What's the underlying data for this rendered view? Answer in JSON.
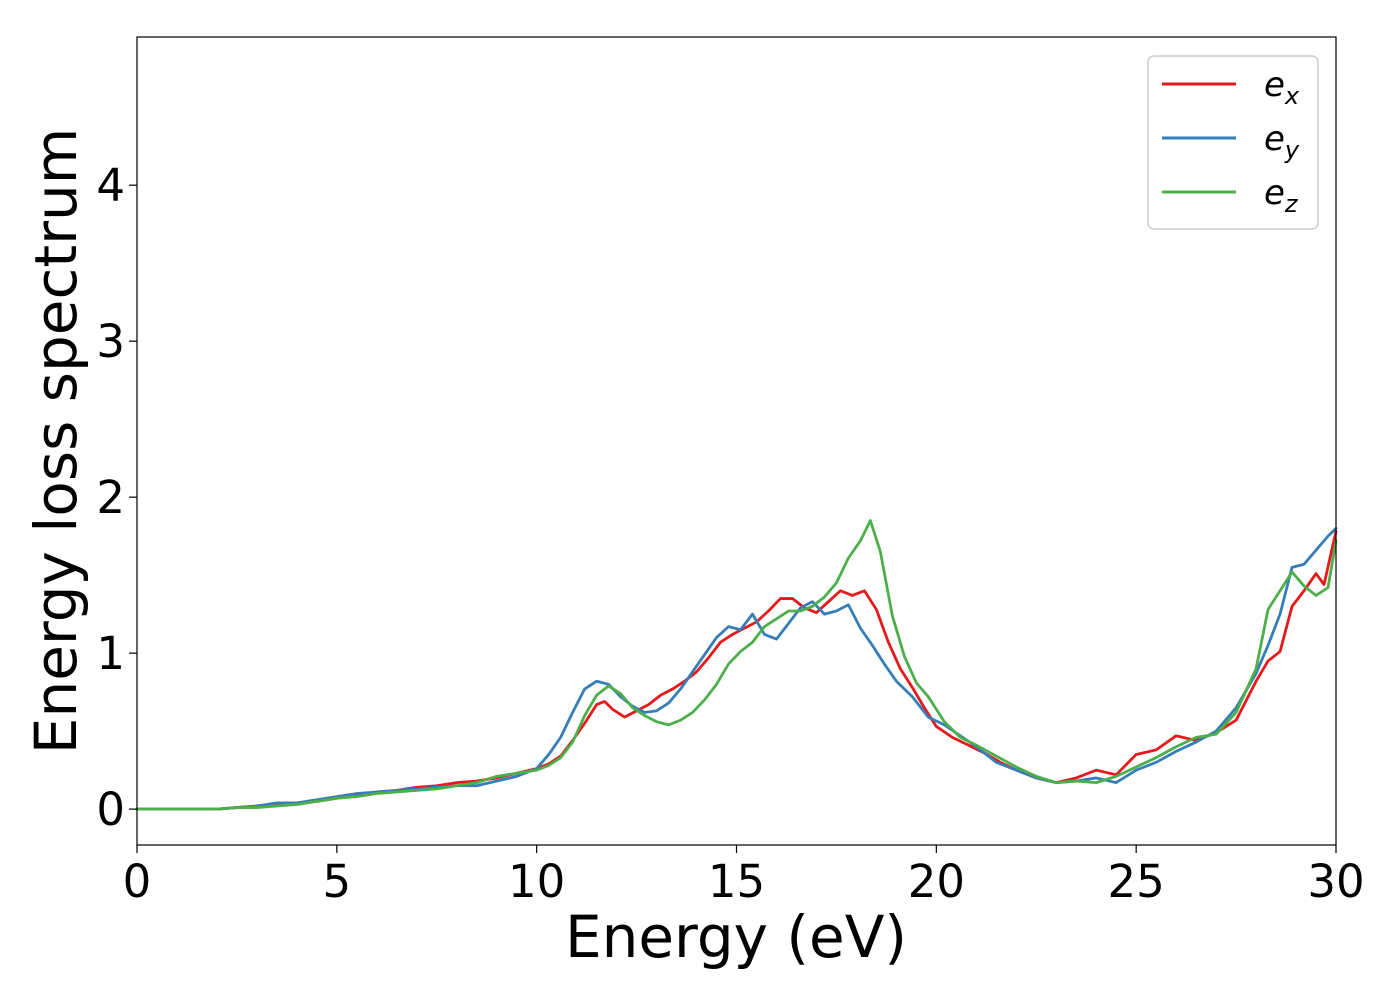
{
  "chart_data": {
    "type": "line",
    "title": "",
    "xlabel": "Energy (eV)",
    "ylabel": "Energy loss spectrum",
    "xlim": [
      0,
      30
    ],
    "ylim": [
      -0.23,
      4.95
    ],
    "x_ticks": [
      "0",
      "5",
      "10",
      "15",
      "20",
      "25",
      "30"
    ],
    "y_ticks": [
      "0",
      "1",
      "2",
      "3",
      "4"
    ],
    "grid": false,
    "legend_position": "top-right",
    "series": [
      {
        "name": "e_x",
        "label_main": "e",
        "label_sub": "x",
        "color": "#e41a1c",
        "x": [
          0,
          1,
          2,
          2.5,
          3,
          3.5,
          4,
          4.5,
          5,
          5.5,
          6,
          6.5,
          7,
          7.5,
          8,
          8.5,
          9,
          9.5,
          10,
          10.3,
          10.6,
          10.9,
          11.2,
          11.5,
          11.7,
          11.9,
          12.2,
          12.5,
          12.8,
          13.1,
          13.4,
          13.7,
          14,
          14.3,
          14.6,
          14.9,
          15.2,
          15.5,
          15.8,
          16.1,
          16.4,
          16.7,
          17,
          17.3,
          17.6,
          17.9,
          18.2,
          18.5,
          18.8,
          19.1,
          19.4,
          19.7,
          20,
          20.4,
          20.8,
          21.2,
          21.6,
          22,
          22.5,
          23,
          23.5,
          24,
          24.5,
          25,
          25.5,
          26,
          26.5,
          27,
          27.5,
          28,
          28.3,
          28.6,
          28.9,
          29.2,
          29.5,
          29.7,
          30
        ],
        "y": [
          0,
          0,
          0,
          0.01,
          0.02,
          0.03,
          0.04,
          0.05,
          0.07,
          0.09,
          0.11,
          0.12,
          0.14,
          0.15,
          0.17,
          0.18,
          0.2,
          0.23,
          0.26,
          0.29,
          0.34,
          0.44,
          0.55,
          0.67,
          0.69,
          0.64,
          0.59,
          0.63,
          0.67,
          0.73,
          0.77,
          0.82,
          0.88,
          0.97,
          1.07,
          1.12,
          1.16,
          1.2,
          1.27,
          1.35,
          1.35,
          1.29,
          1.26,
          1.33,
          1.4,
          1.37,
          1.4,
          1.28,
          1.07,
          0.9,
          0.78,
          0.65,
          0.53,
          0.46,
          0.41,
          0.36,
          0.3,
          0.25,
          0.2,
          0.17,
          0.2,
          0.25,
          0.22,
          0.35,
          0.38,
          0.47,
          0.44,
          0.49,
          0.57,
          0.82,
          0.95,
          1.01,
          1.3,
          1.4,
          1.51,
          1.44,
          1.78
        ]
      },
      {
        "name": "e_y",
        "label_main": "e",
        "label_sub": "y",
        "color": "#377eb8",
        "x": [
          0,
          1,
          2,
          2.5,
          3,
          3.5,
          4,
          4.5,
          5,
          5.5,
          6,
          6.5,
          7,
          7.5,
          8,
          8.5,
          9,
          9.5,
          10,
          10.3,
          10.6,
          10.9,
          11.2,
          11.5,
          11.8,
          12.1,
          12.4,
          12.7,
          13,
          13.3,
          13.6,
          13.9,
          14.2,
          14.5,
          14.8,
          15.1,
          15.4,
          15.7,
          16,
          16.3,
          16.6,
          16.9,
          17.2,
          17.5,
          17.8,
          18.1,
          18.4,
          18.7,
          19,
          19.4,
          19.8,
          20.2,
          20.6,
          21,
          21.5,
          22,
          22.5,
          23,
          23.5,
          24,
          24.5,
          25,
          25.5,
          26,
          26.5,
          27,
          27.5,
          28,
          28.3,
          28.6,
          28.9,
          29.2,
          29.5,
          29.8,
          30
        ],
        "y": [
          0,
          0,
          0,
          0.01,
          0.02,
          0.04,
          0.04,
          0.06,
          0.08,
          0.1,
          0.11,
          0.12,
          0.13,
          0.14,
          0.15,
          0.15,
          0.18,
          0.21,
          0.26,
          0.35,
          0.46,
          0.62,
          0.77,
          0.82,
          0.8,
          0.72,
          0.66,
          0.62,
          0.63,
          0.68,
          0.77,
          0.88,
          0.99,
          1.1,
          1.17,
          1.15,
          1.25,
          1.12,
          1.09,
          1.19,
          1.29,
          1.33,
          1.25,
          1.27,
          1.31,
          1.16,
          1.05,
          0.93,
          0.82,
          0.72,
          0.59,
          0.54,
          0.47,
          0.4,
          0.3,
          0.25,
          0.2,
          0.17,
          0.18,
          0.2,
          0.17,
          0.25,
          0.3,
          0.37,
          0.43,
          0.5,
          0.65,
          0.87,
          1.05,
          1.25,
          1.55,
          1.57,
          1.66,
          1.75,
          1.8
        ]
      },
      {
        "name": "e_z",
        "label_main": "e",
        "label_sub": "z",
        "color": "#4daf4a",
        "x": [
          0,
          1,
          2,
          2.5,
          3,
          3.5,
          4,
          4.5,
          5,
          5.5,
          6,
          6.5,
          7,
          7.5,
          8,
          8.5,
          9,
          9.5,
          10,
          10.3,
          10.6,
          10.9,
          11.2,
          11.5,
          11.8,
          12.1,
          12.4,
          12.7,
          13,
          13.3,
          13.6,
          13.9,
          14.2,
          14.5,
          14.8,
          15.1,
          15.4,
          15.7,
          16,
          16.3,
          16.6,
          16.9,
          17.2,
          17.5,
          17.8,
          18.1,
          18.35,
          18.6,
          18.9,
          19.2,
          19.5,
          19.8,
          20.2,
          20.6,
          21,
          21.5,
          22,
          22.5,
          23,
          23.5,
          24,
          24.5,
          25,
          25.5,
          26,
          26.5,
          27,
          27.5,
          28,
          28.3,
          28.6,
          28.9,
          29.2,
          29.5,
          29.8,
          30
        ],
        "y": [
          0,
          0,
          0,
          0.01,
          0.01,
          0.02,
          0.03,
          0.05,
          0.07,
          0.08,
          0.1,
          0.11,
          0.12,
          0.13,
          0.15,
          0.17,
          0.21,
          0.23,
          0.25,
          0.28,
          0.33,
          0.43,
          0.6,
          0.73,
          0.79,
          0.74,
          0.65,
          0.6,
          0.56,
          0.54,
          0.57,
          0.62,
          0.7,
          0.8,
          0.93,
          1.01,
          1.07,
          1.17,
          1.22,
          1.27,
          1.27,
          1.3,
          1.36,
          1.45,
          1.61,
          1.72,
          1.85,
          1.65,
          1.24,
          0.98,
          0.81,
          0.72,
          0.56,
          0.46,
          0.41,
          0.34,
          0.27,
          0.21,
          0.17,
          0.18,
          0.17,
          0.21,
          0.27,
          0.33,
          0.4,
          0.46,
          0.48,
          0.62,
          0.9,
          1.28,
          1.4,
          1.52,
          1.43,
          1.37,
          1.42,
          1.72
        ]
      }
    ]
  }
}
